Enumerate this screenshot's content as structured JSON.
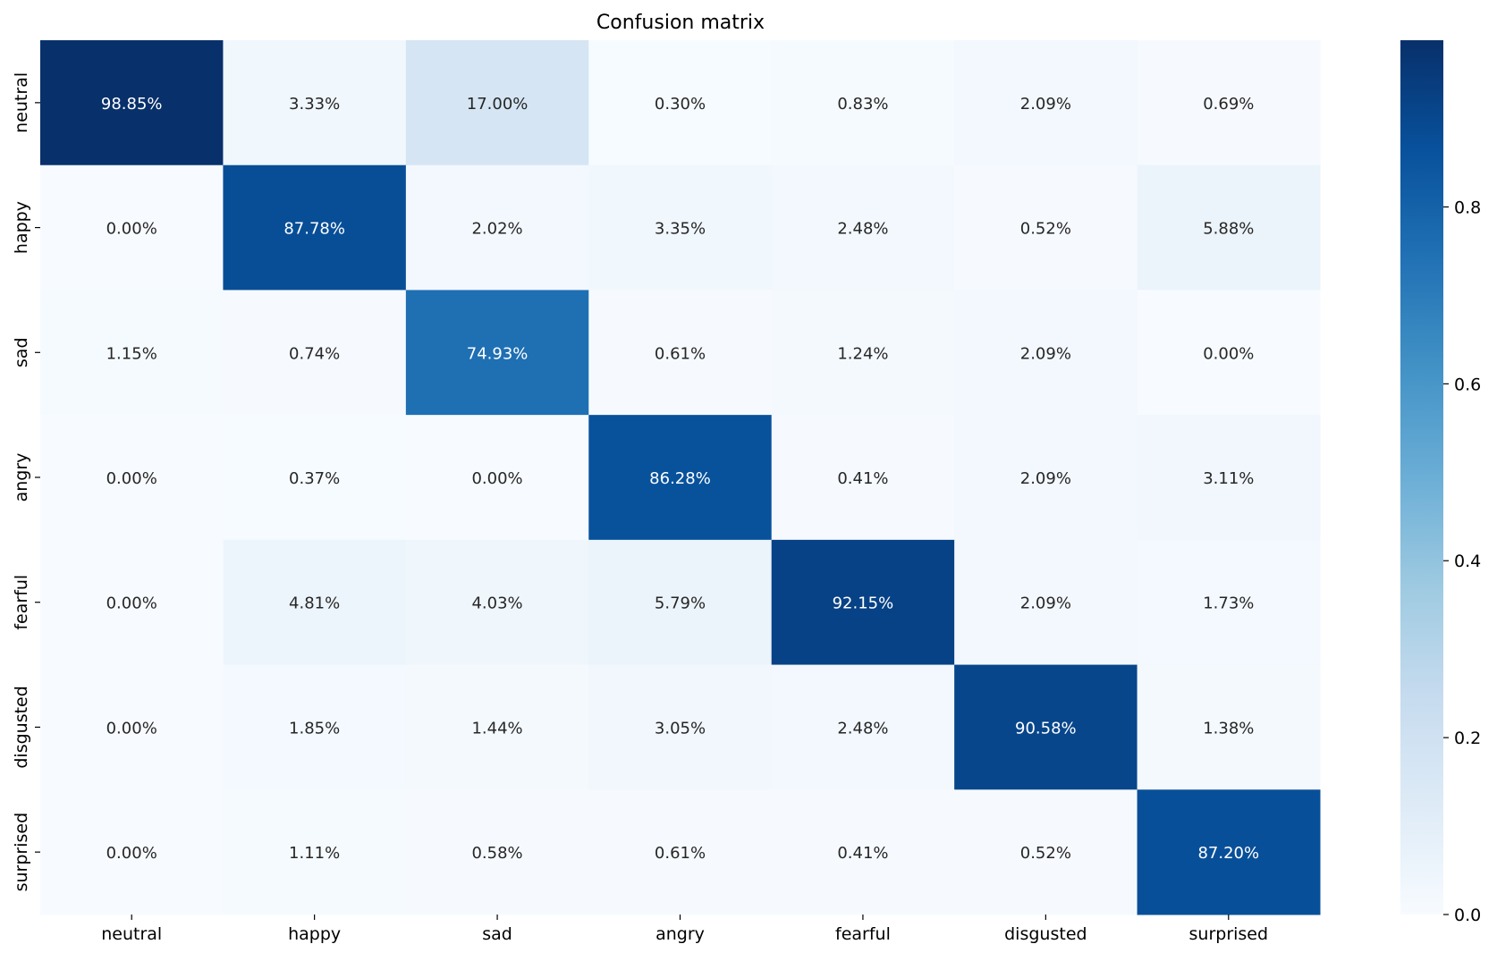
{
  "chart_data": {
    "type": "heatmap",
    "title": "Confusion matrix",
    "xlabel": "",
    "ylabel": "",
    "x_categories": [
      "neutral",
      "happy",
      "sad",
      "angry",
      "fearful",
      "disgusted",
      "surprised"
    ],
    "y_categories": [
      "neutral",
      "happy",
      "sad",
      "angry",
      "fearful",
      "disgusted",
      "surprised"
    ],
    "values": [
      [
        0.9885,
        0.0333,
        0.17,
        0.003,
        0.0083,
        0.0209,
        0.0069
      ],
      [
        0.0,
        0.8778,
        0.0202,
        0.0335,
        0.0248,
        0.0052,
        0.0588
      ],
      [
        0.0115,
        0.0074,
        0.7493,
        0.0061,
        0.0124,
        0.0209,
        0.0
      ],
      [
        0.0,
        0.0037,
        0.0,
        0.8628,
        0.0041,
        0.0209,
        0.0311
      ],
      [
        0.0,
        0.0481,
        0.0403,
        0.0579,
        0.9215,
        0.0209,
        0.0173
      ],
      [
        0.0,
        0.0185,
        0.0144,
        0.0305,
        0.0248,
        0.9058,
        0.0138
      ],
      [
        0.0,
        0.0111,
        0.0058,
        0.0061,
        0.0041,
        0.0052,
        0.872
      ]
    ],
    "annotations": [
      [
        "98.85%",
        "3.33%",
        "17.00%",
        "0.30%",
        "0.83%",
        "2.09%",
        "0.69%"
      ],
      [
        "0.00%",
        "87.78%",
        "2.02%",
        "3.35%",
        "2.48%",
        "0.52%",
        "5.88%"
      ],
      [
        "1.15%",
        "0.74%",
        "74.93%",
        "0.61%",
        "1.24%",
        "2.09%",
        "0.00%"
      ],
      [
        "0.00%",
        "0.37%",
        "0.00%",
        "86.28%",
        "0.41%",
        "2.09%",
        "3.11%"
      ],
      [
        "0.00%",
        "4.81%",
        "4.03%",
        "5.79%",
        "92.15%",
        "2.09%",
        "1.73%"
      ],
      [
        "0.00%",
        "1.85%",
        "1.44%",
        "3.05%",
        "2.48%",
        "90.58%",
        "1.38%"
      ],
      [
        "0.00%",
        "1.11%",
        "0.58%",
        "0.61%",
        "0.41%",
        "0.52%",
        "87.20%"
      ]
    ],
    "colorbar": {
      "ticks": [
        0.0,
        0.2,
        0.4,
        0.6,
        0.8
      ],
      "tick_labels": [
        "0.0",
        "0.2",
        "0.4",
        "0.6",
        "0.8"
      ],
      "range": [
        0.0,
        0.9885
      ]
    },
    "colormap": [
      "#f7fbff",
      "#deebf7",
      "#c6dbef",
      "#9ecae1",
      "#6baed6",
      "#4292c6",
      "#2171b5",
      "#08519c",
      "#08306b"
    ],
    "grid": false,
    "legend": "colorbar-right"
  }
}
